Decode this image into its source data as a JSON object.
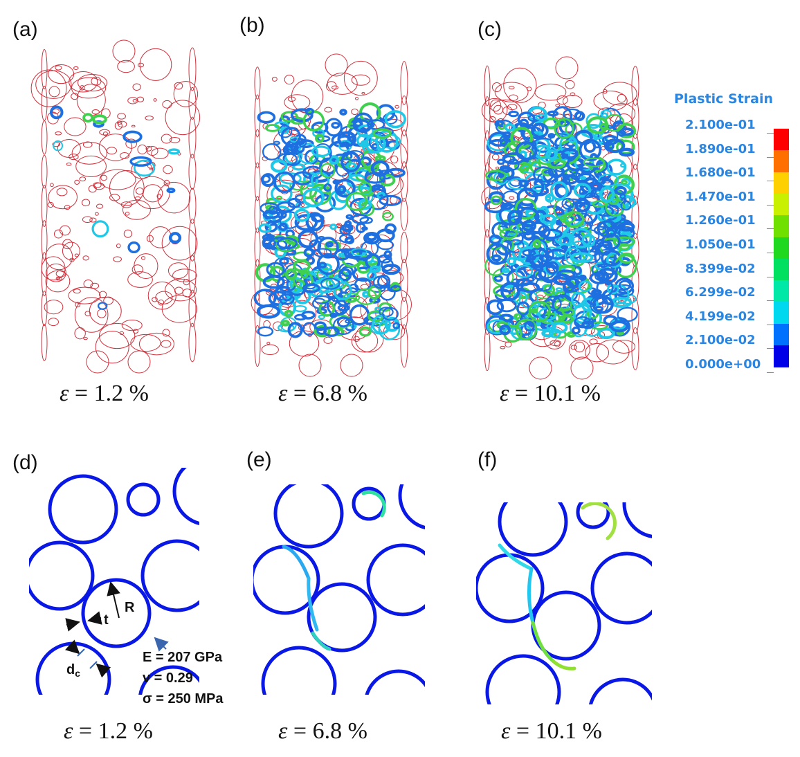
{
  "panels": {
    "top": [
      {
        "letter": "(a)",
        "caption_eps": "ε",
        "caption_value": "= 1.2 %"
      },
      {
        "letter": "(b)",
        "caption_eps": "ε",
        "caption_value": "= 6.8 %"
      },
      {
        "letter": "(c)",
        "caption_eps": "ε",
        "caption_value": "= 10.1 %"
      }
    ],
    "bottom": [
      {
        "letter": "(d)",
        "caption_eps": "ε",
        "caption_value": "= 1.2 %"
      },
      {
        "letter": "(e)",
        "caption_eps": "ε",
        "caption_value": "= 6.8 %"
      },
      {
        "letter": "(f)",
        "caption_eps": "ε",
        "caption_value": "= 10.1 %"
      }
    ]
  },
  "legend": {
    "title": "Plastic Strain",
    "labels": [
      "2.100e-01",
      "1.890e-01",
      "1.680e-01",
      "1.470e-01",
      "1.260e-01",
      "1.050e-01",
      "8.399e-02",
      "6.299e-02",
      "4.199e-02",
      "2.100e-02",
      "0.000e+00"
    ],
    "colors": [
      "#ff0000",
      "#ff7000",
      "#ffd000",
      "#c8f000",
      "#70e000",
      "#20d820",
      "#00e060",
      "#00e8a8",
      "#00d8f0",
      "#0070ff",
      "#0000e8"
    ]
  },
  "annotations": {
    "R": "R",
    "t": "t",
    "dc_main": "d",
    "dc_sub": "c",
    "E": "E = 207 GPa",
    "v": "v = 0.29",
    "sigma": "σ = 250 MPa"
  },
  "colors": {
    "ring_red": "#d0303c",
    "ring_blue": "#0a18e6",
    "strain_blue": "#1e6fe0",
    "strain_green": "#40d050"
  }
}
